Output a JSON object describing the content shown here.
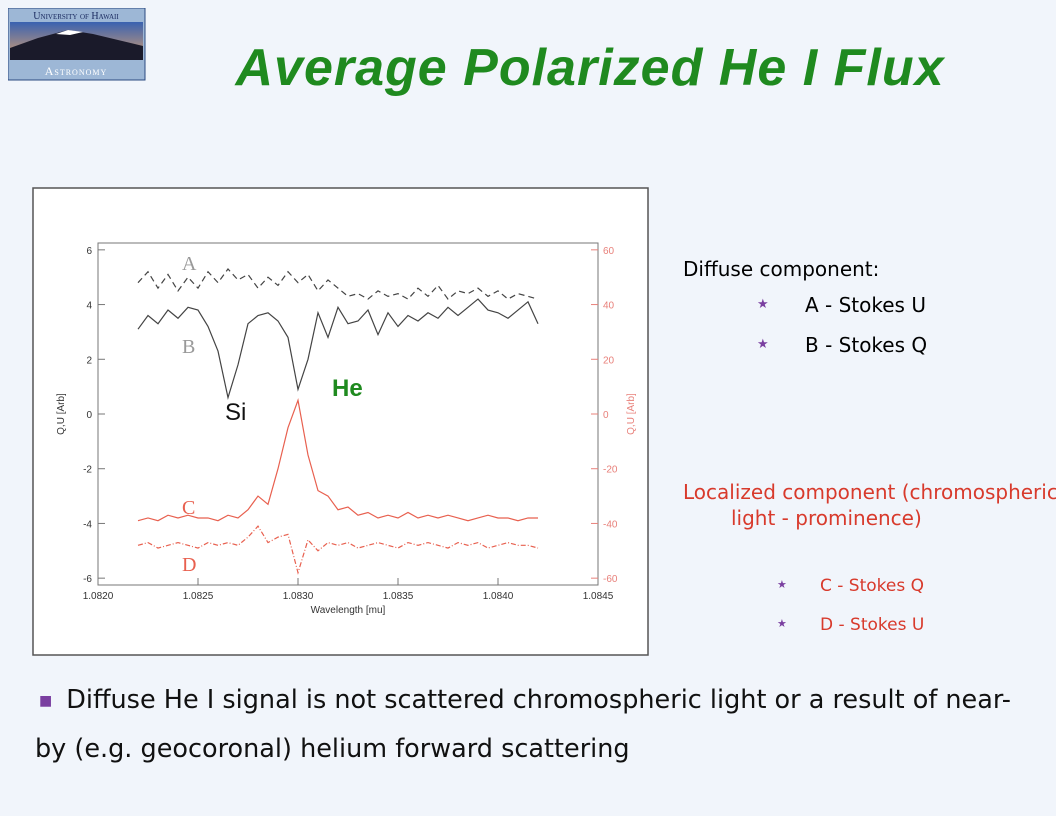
{
  "logo": {
    "line1": "University of Hawaii",
    "line2": "Astronomy"
  },
  "title": "Average Polarized He I Flux",
  "chart_data": {
    "type": "line",
    "xlabel": "Wavelength [mu]",
    "ylabel": "Q,U [Arb]",
    "y2label": "Q,U [Arb]",
    "xlim": [
      1.082,
      1.0845
    ],
    "xticks": [
      {
        "value": 1.082,
        "label": "1.0820"
      },
      {
        "value": 1.0825,
        "label": "1.0825"
      },
      {
        "value": 1.083,
        "label": "1.0830"
      },
      {
        "value": 1.0835,
        "label": "1.0835"
      },
      {
        "value": 1.084,
        "label": "1.0840"
      },
      {
        "value": 1.0845,
        "label": "1.0845"
      }
    ],
    "ylim": [
      -6.25,
      6.25
    ],
    "yticks": [
      -6,
      -4,
      -2,
      0,
      2,
      4,
      6
    ],
    "y2lim": [
      -62.5,
      62.5
    ],
    "y2ticks": [
      -60,
      -40,
      -20,
      0,
      20,
      40,
      60
    ],
    "x": [
      1.0822,
      1.08225,
      1.0823,
      1.08235,
      1.0824,
      1.08245,
      1.0825,
      1.08255,
      1.0826,
      1.08265,
      1.0827,
      1.08275,
      1.0828,
      1.08285,
      1.0829,
      1.08295,
      1.083,
      1.08305,
      1.0831,
      1.08315,
      1.0832,
      1.08325,
      1.0833,
      1.08335,
      1.0834,
      1.08345,
      1.0835,
      1.08355,
      1.0836,
      1.08365,
      1.0837,
      1.08375,
      1.0838,
      1.08385,
      1.0839,
      1.08395,
      1.084,
      1.08405,
      1.0841,
      1.08415,
      1.0842
    ],
    "series": [
      {
        "name": "A",
        "color": "#444444",
        "dash": "6,4",
        "values": [
          4.8,
          5.2,
          4.6,
          5.1,
          4.5,
          5.0,
          4.6,
          5.2,
          4.8,
          5.3,
          4.9,
          5.1,
          4.6,
          5.0,
          4.7,
          5.2,
          4.8,
          5.1,
          4.5,
          4.9,
          4.6,
          4.3,
          4.4,
          4.2,
          4.5,
          4.3,
          4.4,
          4.2,
          4.6,
          4.3,
          4.7,
          4.2,
          4.5,
          4.4,
          4.6,
          4.3,
          4.5,
          4.2,
          4.4,
          4.3,
          4.2
        ]
      },
      {
        "name": "B",
        "color": "#444444",
        "values": [
          3.1,
          3.6,
          3.3,
          3.8,
          3.5,
          3.9,
          3.8,
          3.2,
          2.3,
          0.6,
          1.8,
          3.3,
          3.6,
          3.7,
          3.4,
          2.8,
          0.9,
          2.0,
          3.7,
          2.8,
          3.9,
          3.3,
          3.4,
          3.8,
          2.9,
          3.7,
          3.2,
          3.6,
          3.4,
          3.7,
          3.5,
          3.9,
          3.6,
          3.9,
          4.2,
          3.8,
          3.7,
          3.5,
          3.8,
          4.1,
          3.3
        ]
      },
      {
        "name": "C",
        "color": "#e8604f",
        "axis": "y2",
        "values": [
          -39,
          -38,
          -39,
          -37,
          -38,
          -37,
          -38,
          -38,
          -39,
          -37,
          -38,
          -35,
          -30,
          -33,
          -20,
          -5,
          5,
          -15,
          -28,
          -30,
          -35,
          -34,
          -37,
          -36,
          -38,
          -37,
          -38,
          -36,
          -38,
          -37,
          -38,
          -37,
          -38,
          -39,
          -38,
          -37,
          -38,
          -38,
          -39,
          -38,
          -38
        ]
      },
      {
        "name": "D",
        "color": "#e8604f",
        "axis": "y2",
        "dash": "5,2,1,2",
        "values": [
          -48,
          -47,
          -49,
          -48,
          -47,
          -48,
          -49,
          -47,
          -48,
          -47,
          -48,
          -45,
          -41,
          -47,
          -45,
          -44,
          -58,
          -46,
          -50,
          -47,
          -48,
          -47,
          -49,
          -48,
          -47,
          -48,
          -49,
          -47,
          -48,
          -47,
          -48,
          -49,
          -47,
          -48,
          -47,
          -49,
          -48,
          -47,
          -48,
          -48,
          -49
        ]
      }
    ],
    "annotations": [
      {
        "text": "Si"
      },
      {
        "text": "He"
      }
    ]
  },
  "notes": {
    "diffuse": {
      "heading": "Diffuse component:",
      "items": [
        "A - Stokes U",
        "B - Stokes Q"
      ]
    },
    "localized": {
      "heading": "Localized component (chromospheric light - prominence)",
      "items": [
        "C - Stokes Q",
        "D - Stokes U"
      ]
    }
  },
  "bullet": "Diffuse He I signal is not scattered chromospheric light or a result of near-by (e.g. geocoronal) helium forward scattering"
}
